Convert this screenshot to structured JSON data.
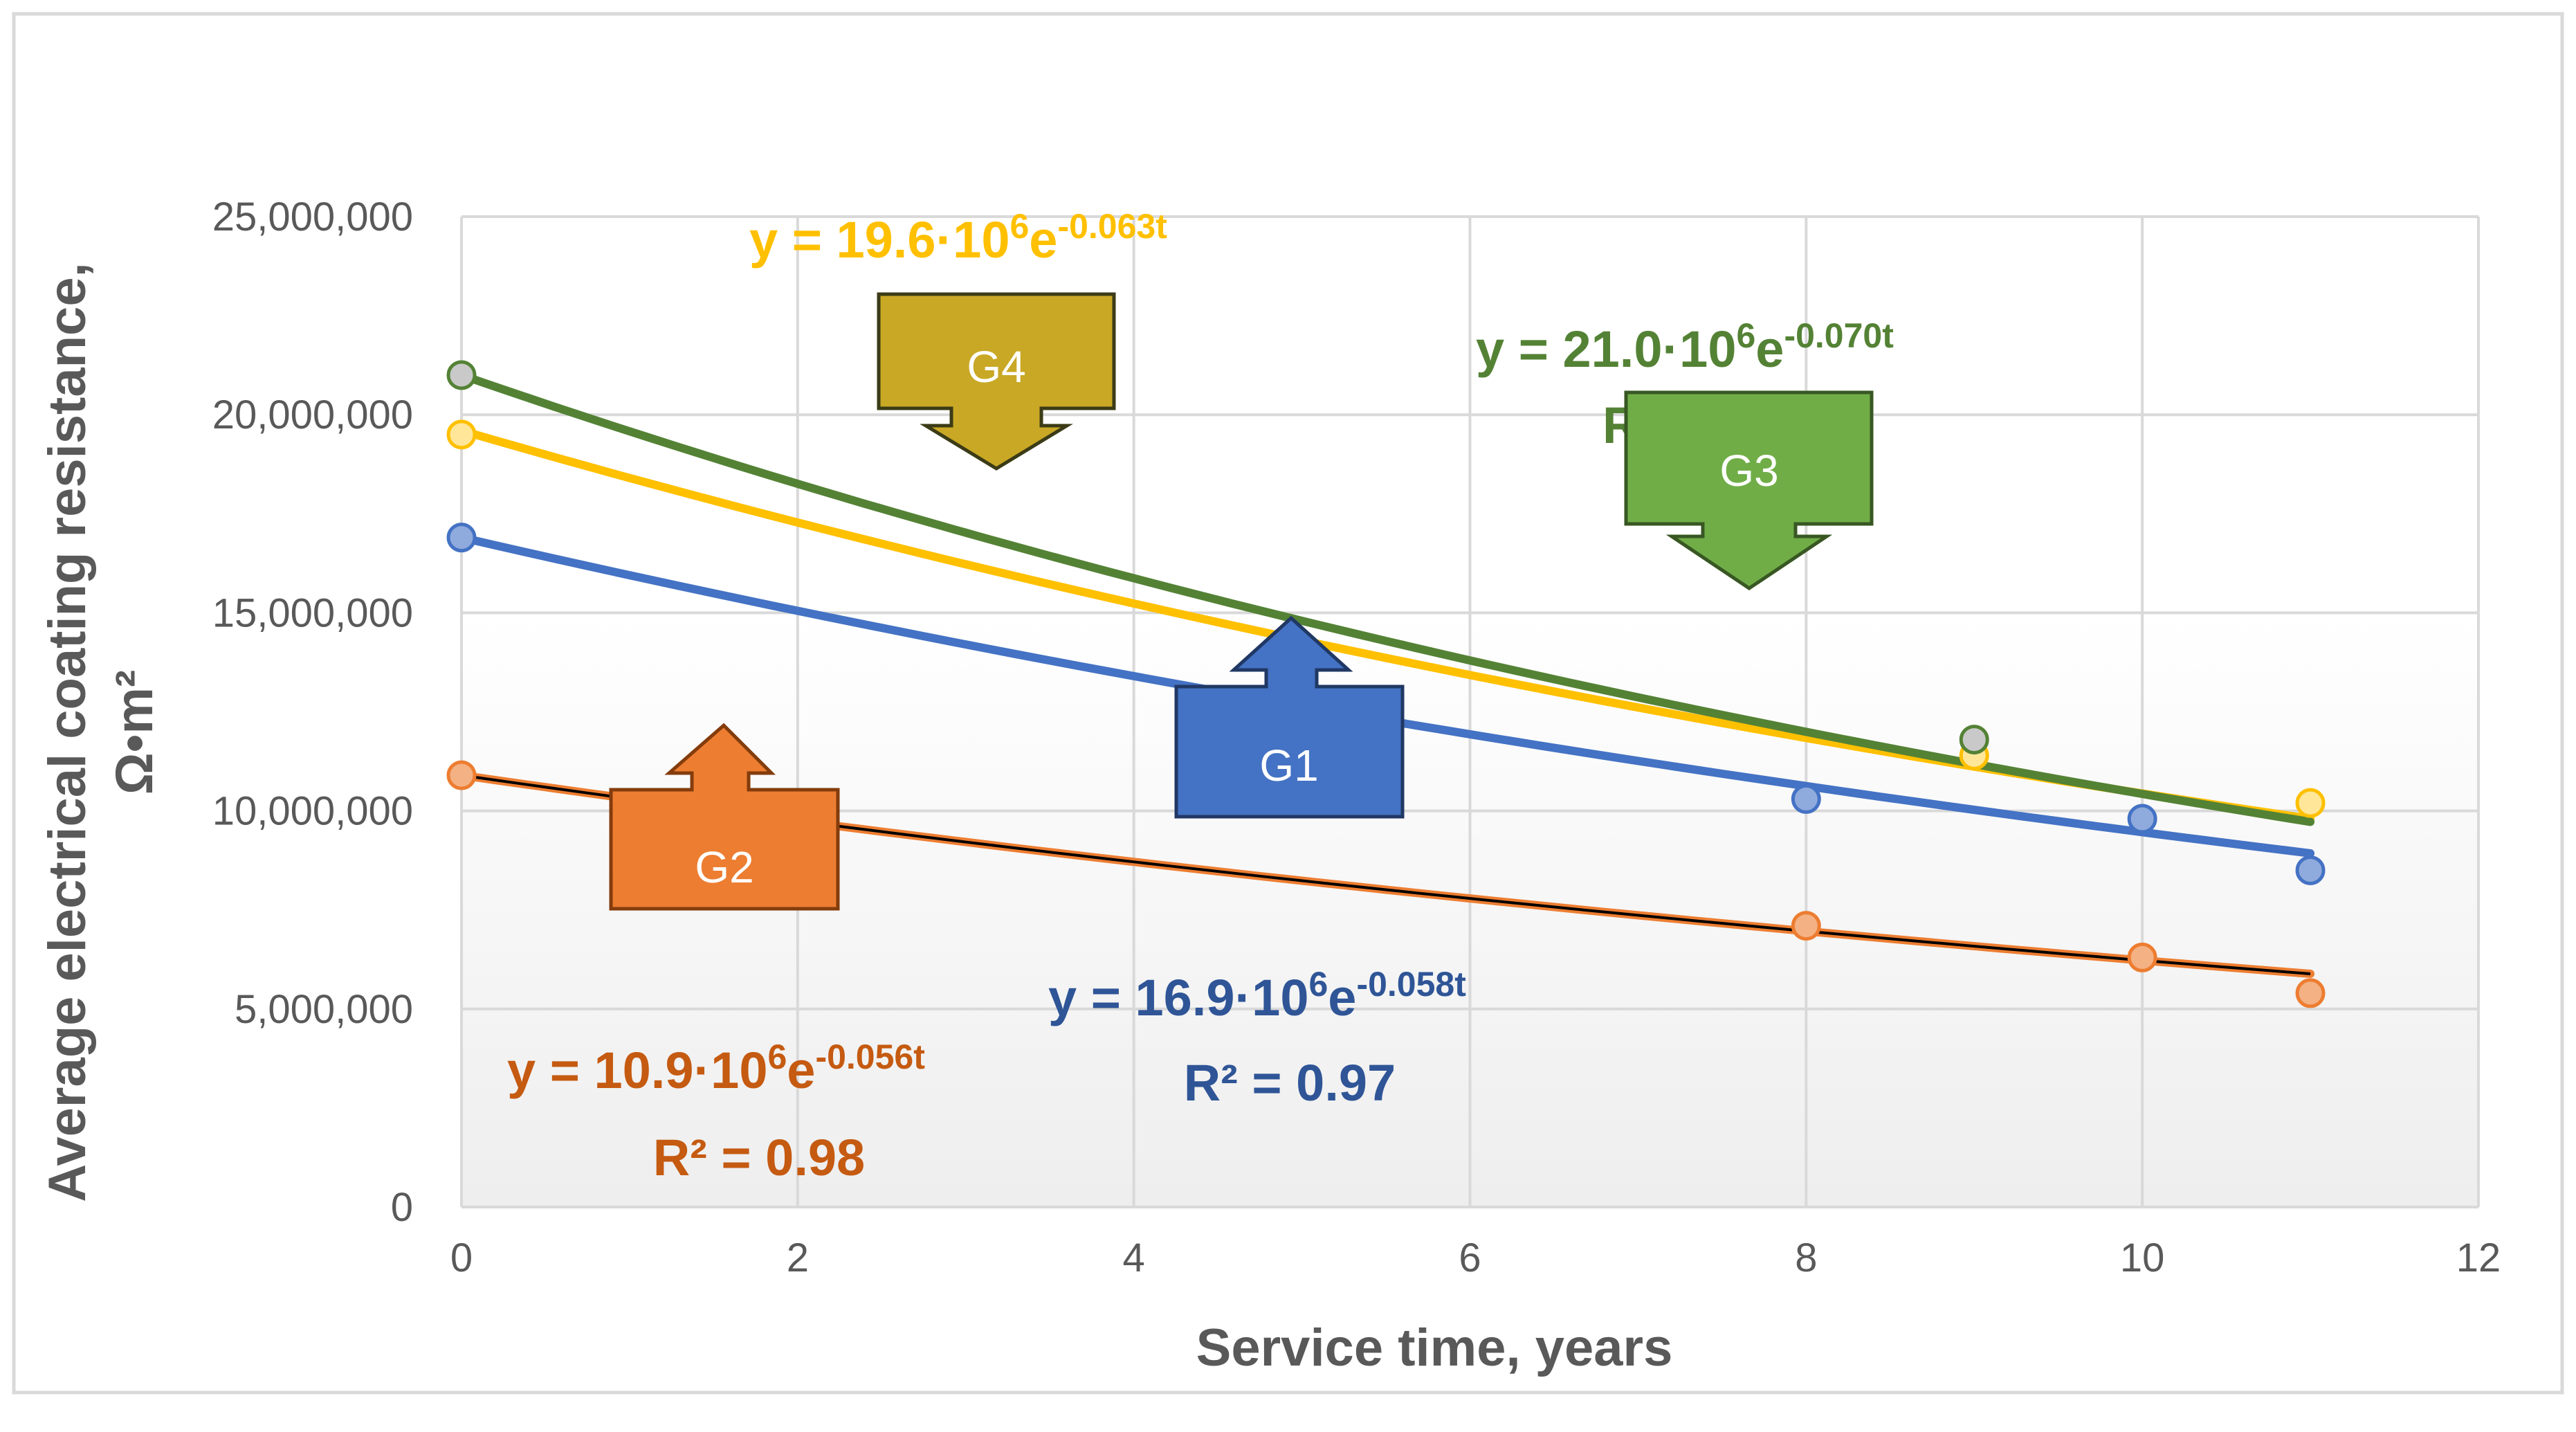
{
  "chart_data": {
    "type": "scatter",
    "xlabel": "Service time, years",
    "ylabel_line1": "Average electrical coating resistance,",
    "ylabel_line2": "Ω•m²",
    "xlim": [
      0,
      12
    ],
    "ylim": [
      0,
      25000000
    ],
    "x_ticks": [
      0,
      2,
      4,
      6,
      8,
      10,
      12
    ],
    "y_ticks": [
      0,
      5000000,
      10000000,
      15000000,
      20000000,
      25000000
    ],
    "x_tick_labels": [
      "0",
      "2",
      "4",
      "6",
      "8",
      "10",
      "12"
    ],
    "y_tick_labels": [
      "0",
      "5,000,000",
      "10,000,000",
      "15,000,000",
      "20,000,000",
      "25,000,000"
    ],
    "grid": true,
    "series": [
      {
        "name": "G1",
        "color": "#4472C4",
        "marker_fill": "#8FAADC",
        "points": [
          [
            0,
            16900000
          ],
          [
            8,
            10300000
          ],
          [
            10,
            9800000
          ],
          [
            11,
            8500000
          ]
        ],
        "fit": {
          "a": 16900000,
          "b": -0.058,
          "t_max": 11,
          "stroke": "#4472C4"
        },
        "equation_base": "y = 16.9·10",
        "equation_exp": "6",
        "equation_e": "e",
        "equation_power": "-0.058t",
        "r2_text": "R² = 0.97",
        "label_color": "#2F5597",
        "callout_label": "G1",
        "callout_fill": "#4472C4",
        "callout_stroke": "#203864"
      },
      {
        "name": "G2",
        "color": "#ED7D31",
        "marker_fill": "#F4B183",
        "points": [
          [
            0,
            10900000
          ],
          [
            8,
            7100000
          ],
          [
            10,
            6300000
          ],
          [
            11,
            5400000
          ]
        ],
        "fit": {
          "a": 10900000,
          "b": -0.056,
          "t_max": 11,
          "stroke": "#ED7D31",
          "overlay_stroke": "#000000"
        },
        "equation_base": "y = 10.9·10",
        "equation_exp": "6",
        "equation_e": "e",
        "equation_power": "-0.056t",
        "r2_text": "R² = 0.98",
        "label_color": "#C55A11",
        "callout_label": "G2",
        "callout_fill": "#ED7D31",
        "callout_stroke": "#843C0C"
      },
      {
        "name": "G3",
        "color": "#548235",
        "marker_fill": "#C9C9C9",
        "points": [
          [
            0,
            21000000
          ],
          [
            9,
            11800000
          ]
        ],
        "fit": {
          "a": 21000000,
          "b": -0.07,
          "t_max": 11,
          "stroke": "#548235"
        },
        "equation_base": "y = 21.0·10",
        "equation_exp": "6",
        "equation_e": "e",
        "equation_power": "-0.070t",
        "r2_partial": "R",
        "label_color": "#548235",
        "callout_label": "G3",
        "callout_fill": "#70AD47",
        "callout_stroke": "#385723"
      },
      {
        "name": "G4",
        "color": "#FFC000",
        "marker_fill": "#FFE699",
        "points": [
          [
            0,
            19500000
          ],
          [
            9,
            11400000
          ],
          [
            11,
            10200000
          ]
        ],
        "fit": {
          "a": 19600000,
          "b": -0.063,
          "t_max": 11,
          "stroke": "#FFC000"
        },
        "equation_base": "y = 19.6·10",
        "equation_exp": "6",
        "equation_e": "e",
        "equation_power": "-0.063t",
        "label_color": "#FFC000",
        "callout_label": "G4",
        "callout_fill": "#C9A825",
        "callout_stroke": "#3B3B16"
      }
    ]
  }
}
